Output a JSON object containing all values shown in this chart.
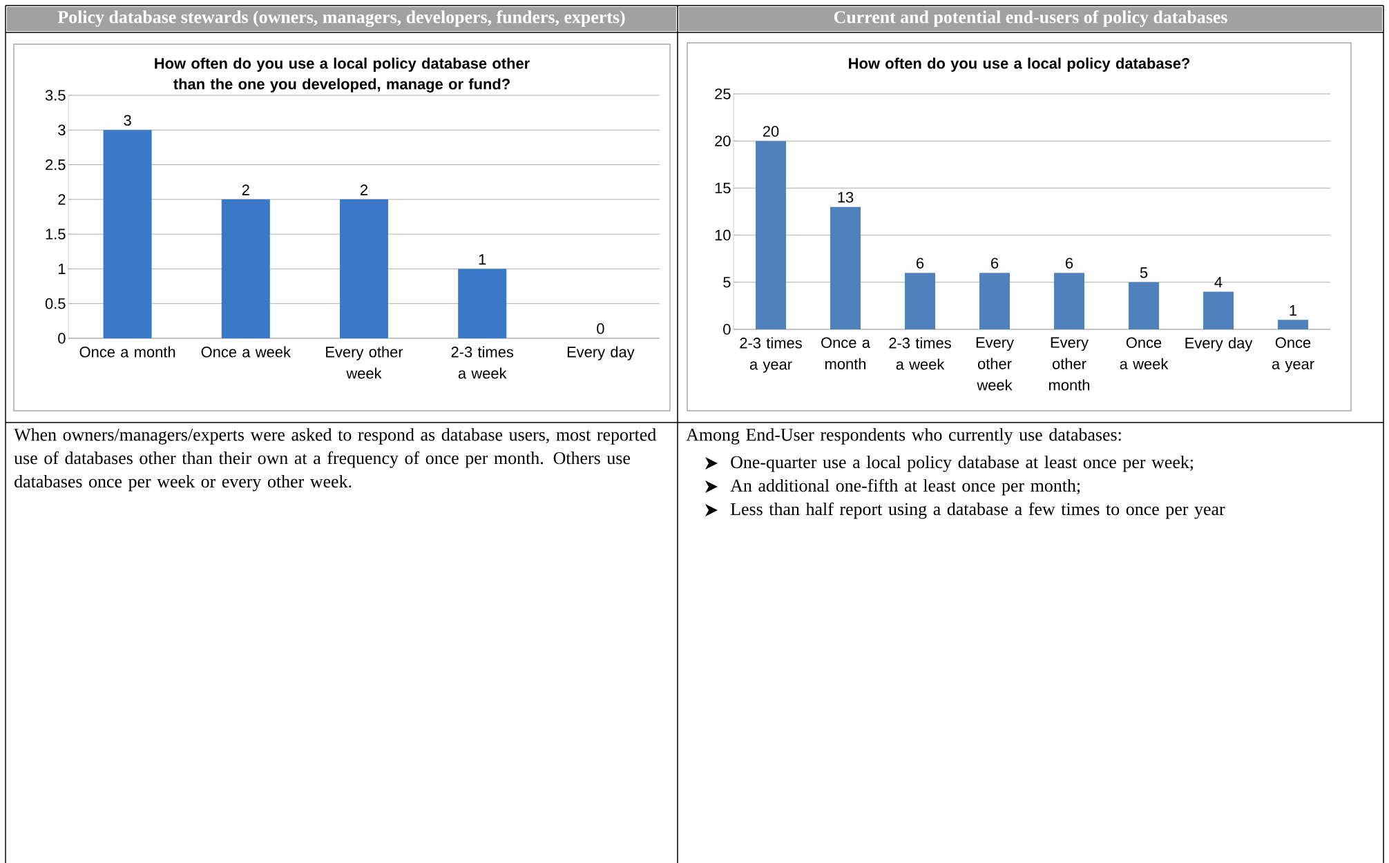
{
  "chart_data": [
    {
      "type": "bar",
      "title": "Policy database stewards (owners, managers, developers, funders, experts)",
      "subtitle": "How often do you use a local policy database other than the one you developed, manage or fund?",
      "categories": [
        "Once a month",
        "Once a week",
        "Every other week",
        "2-3 times a week",
        "Every day"
      ],
      "values": [
        3,
        2,
        2,
        1,
        0
      ],
      "color": "#3a78c8",
      "ylim": [
        0,
        3.5
      ],
      "yticks": [
        0,
        0.5,
        1,
        1.5,
        2,
        2.5,
        3,
        3.5
      ],
      "grid": "y",
      "data_labels": true,
      "annotations": [
        "When owners/managers/experts were asked to respond as database users, most reported use of databases other than their own at a frequency of once per month. Others use databases once per week or every other week."
      ]
    },
    {
      "type": "bar",
      "title": "Current and potential end-users of policy databases",
      "subtitle": "How often do you use a local policy database?",
      "categories": [
        "2-3 times a year",
        "Once a month",
        "2-3 times a week",
        "Every other week",
        "Every other month",
        "Once a week",
        "Every day",
        "Once a year"
      ],
      "values": [
        20,
        13,
        6,
        6,
        6,
        5,
        4,
        1
      ],
      "color": "#4f81bd",
      "ylim": [
        0,
        25
      ],
      "yticks": [
        0,
        5,
        10,
        15,
        20,
        25
      ],
      "grid": "y",
      "data_labels": true,
      "annotations": [
        "Among End-User respondents who currently use databases:",
        "One-quarter use a local policy database at least once per week;",
        "An additional one-fifth at least once per month;",
        "Less than half report using a database a few times to once per year"
      ]
    }
  ]
}
